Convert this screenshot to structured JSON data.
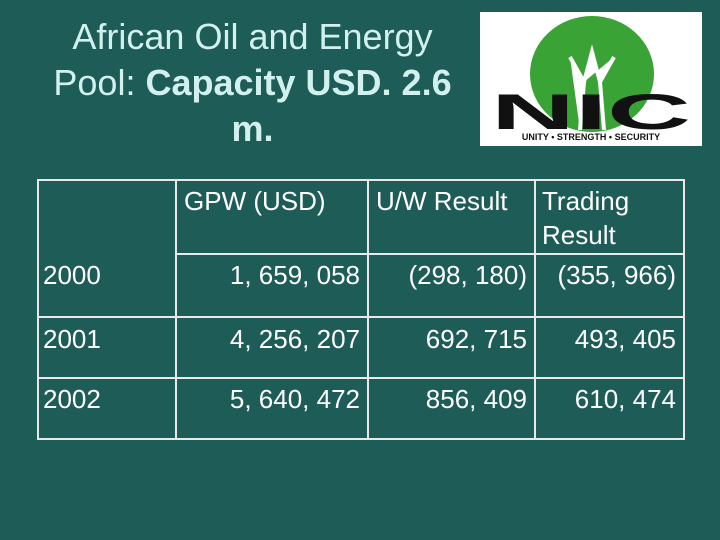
{
  "title": {
    "plain": "African Oil and Energy Pool:",
    "bold": "Capacity USD. 2.6 m."
  },
  "logo": {
    "letters": "NIC",
    "motto": "UNITY • STRENGTH • SECURITY"
  },
  "table": {
    "header": [
      "GPW (USD)",
      "U/W Result",
      "Trading Result"
    ],
    "rows": [
      [
        "2000",
        "1, 659, 058",
        "(298, 180)",
        "(355, 966)"
      ],
      [
        "2001",
        "4, 256, 207",
        "692, 715",
        "493, 405"
      ],
      [
        "2002",
        "5, 640, 472",
        "856, 409",
        "610, 474"
      ]
    ]
  }
}
